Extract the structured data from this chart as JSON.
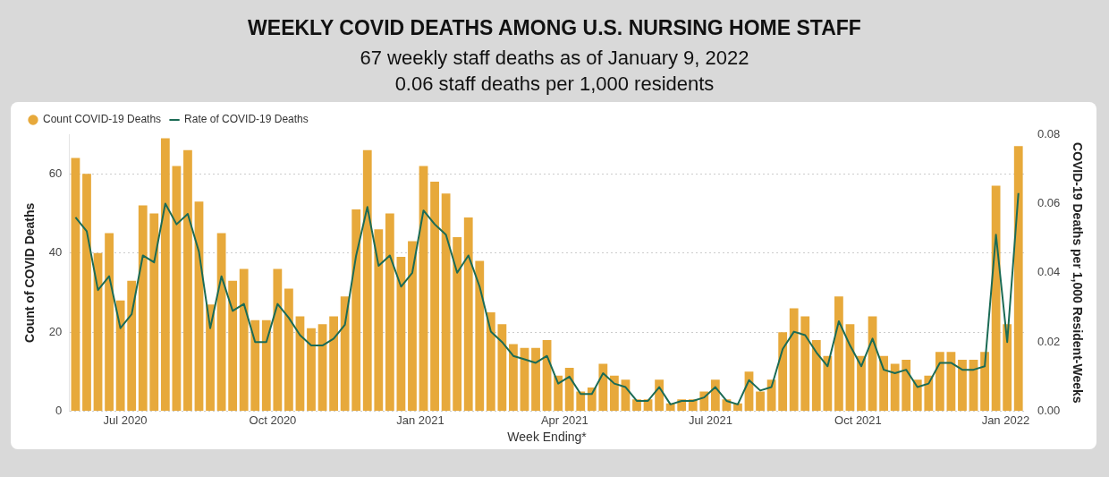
{
  "chart_data": {
    "type": "bar",
    "title": "WEEKLY COVID DEATHS AMONG U.S. NURSING HOME STAFF",
    "subtitle": "67 weekly staff deaths as of January 9, 2022\n0.06 staff deaths per 1,000 residents",
    "xlabel": "Week Ending*",
    "ylabel": "Count of COVID Deaths",
    "y2label": "COVID-19 Deaths per 1,000 Resident-Weeks",
    "x": [
      "2020-05-31",
      "2020-06-07",
      "2020-06-14",
      "2020-06-21",
      "2020-06-28",
      "2020-07-05",
      "2020-07-12",
      "2020-07-19",
      "2020-07-26",
      "2020-08-02",
      "2020-08-09",
      "2020-08-16",
      "2020-08-23",
      "2020-08-30",
      "2020-09-06",
      "2020-09-13",
      "2020-09-20",
      "2020-09-27",
      "2020-10-04",
      "2020-10-11",
      "2020-10-18",
      "2020-10-25",
      "2020-11-01",
      "2020-11-08",
      "2020-11-15",
      "2020-11-22",
      "2020-11-29",
      "2020-12-06",
      "2020-12-13",
      "2020-12-20",
      "2020-12-27",
      "2021-01-03",
      "2021-01-10",
      "2021-01-17",
      "2021-01-24",
      "2021-01-31",
      "2021-02-07",
      "2021-02-14",
      "2021-02-21",
      "2021-02-28",
      "2021-03-07",
      "2021-03-14",
      "2021-03-21",
      "2021-03-28",
      "2021-04-04",
      "2021-04-11",
      "2021-04-18",
      "2021-04-25",
      "2021-05-02",
      "2021-05-09",
      "2021-05-16",
      "2021-05-23",
      "2021-05-30",
      "2021-06-06",
      "2021-06-13",
      "2021-06-20",
      "2021-06-27",
      "2021-07-04",
      "2021-07-11",
      "2021-07-18",
      "2021-07-25",
      "2021-08-01",
      "2021-08-08",
      "2021-08-15",
      "2021-08-22",
      "2021-08-29",
      "2021-09-05",
      "2021-09-12",
      "2021-09-19",
      "2021-09-26",
      "2021-10-03",
      "2021-10-10",
      "2021-10-17",
      "2021-10-24",
      "2021-10-31",
      "2021-11-07",
      "2021-11-14",
      "2021-11-21",
      "2021-11-28",
      "2021-12-05",
      "2021-12-12",
      "2021-12-19",
      "2021-12-26",
      "2022-01-02",
      "2022-01-09"
    ],
    "series": [
      {
        "name": "Count COVID-19 Deaths",
        "color": "#e7a93b",
        "values": [
          64,
          60,
          40,
          45,
          28,
          33,
          52,
          50,
          69,
          62,
          66,
          53,
          27,
          45,
          33,
          36,
          23,
          23,
          36,
          31,
          24,
          21,
          22,
          24,
          29,
          51,
          66,
          46,
          50,
          39,
          43,
          62,
          58,
          55,
          44,
          49,
          38,
          25,
          22,
          17,
          16,
          16,
          18,
          9,
          11,
          5,
          6,
          12,
          9,
          8,
          3,
          3,
          8,
          2,
          3,
          3,
          5,
          8,
          3,
          2,
          10,
          5,
          8,
          20,
          26,
          24,
          18,
          14,
          29,
          22,
          14,
          24,
          14,
          12,
          13,
          8,
          9,
          15,
          15,
          13,
          13,
          15,
          57,
          22,
          67
        ]
      },
      {
        "name": "Rate of COVID-19 Deaths",
        "type": "line",
        "axis": "y2",
        "color": "#1b6b55",
        "values": [
          0.056,
          0.052,
          0.035,
          0.039,
          0.024,
          0.028,
          0.045,
          0.043,
          0.06,
          0.054,
          0.057,
          0.046,
          0.024,
          0.039,
          0.029,
          0.031,
          0.02,
          0.02,
          0.031,
          0.027,
          0.022,
          0.019,
          0.019,
          0.021,
          0.025,
          0.045,
          0.059,
          0.042,
          0.045,
          0.036,
          0.04,
          0.058,
          0.054,
          0.051,
          0.04,
          0.045,
          0.036,
          0.023,
          0.02,
          0.016,
          0.015,
          0.014,
          0.016,
          0.008,
          0.01,
          0.005,
          0.005,
          0.011,
          0.008,
          0.007,
          0.003,
          0.003,
          0.007,
          0.002,
          0.003,
          0.003,
          0.004,
          0.007,
          0.003,
          0.002,
          0.009,
          0.006,
          0.007,
          0.018,
          0.023,
          0.022,
          0.017,
          0.013,
          0.026,
          0.019,
          0.013,
          0.021,
          0.012,
          0.011,
          0.012,
          0.007,
          0.008,
          0.014,
          0.014,
          0.012,
          0.012,
          0.013,
          0.051,
          0.02,
          0.063
        ]
      }
    ],
    "xlim": [
      "2020-05-27",
      "2022-01-13"
    ],
    "xticks": [
      {
        "value": "2020-07-01",
        "label": "Jul 2020"
      },
      {
        "value": "2020-10-01",
        "label": "Oct 2020"
      },
      {
        "value": "2021-01-01",
        "label": "Jan 2021"
      },
      {
        "value": "2021-04-01",
        "label": "Apr 2021"
      },
      {
        "value": "2021-07-01",
        "label": "Jul 2021"
      },
      {
        "value": "2021-10-01",
        "label": "Oct 2021"
      },
      {
        "value": "2022-01-01",
        "label": "Jan 2022"
      }
    ],
    "ylim": [
      0,
      70
    ],
    "yticks": [
      0,
      20,
      40,
      60
    ],
    "y2lim": [
      0,
      0.08
    ],
    "y2ticks": [
      {
        "value": 0,
        "label": "0.00"
      },
      {
        "value": 0.02,
        "label": "0.02"
      },
      {
        "value": 0.04,
        "label": "0.04"
      },
      {
        "value": 0.06,
        "label": "0.06"
      },
      {
        "value": 0.08,
        "label": "0.08"
      }
    ],
    "grid": "y",
    "legend": "top left",
    "marker": "none",
    "line_style": "solid"
  }
}
